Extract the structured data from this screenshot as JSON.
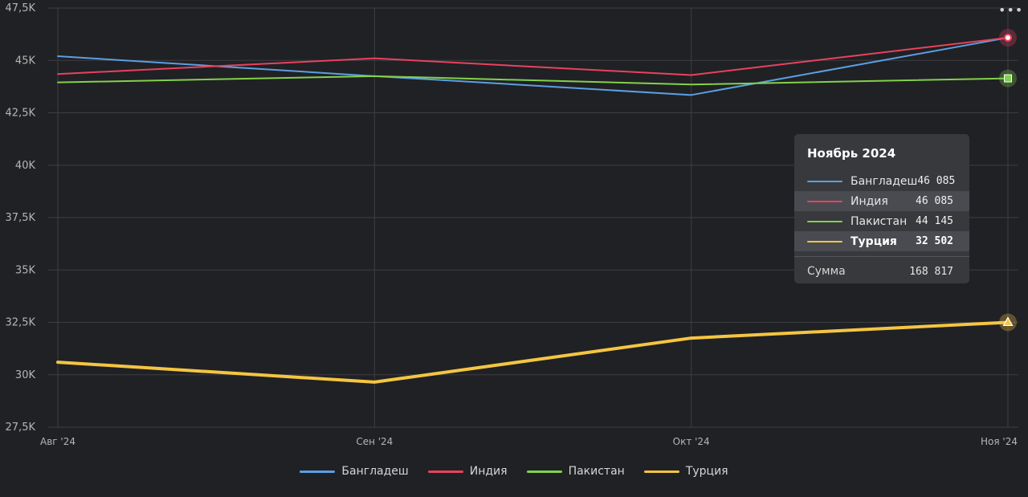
{
  "chart_data": {
    "type": "line",
    "categories": [
      "Авг '24",
      "Сен '24",
      "Окт '24",
      "Ноя '24"
    ],
    "y_ticks": [
      "27,5K",
      "30K",
      "32,5K",
      "35K",
      "37,5K",
      "40K",
      "42,5K",
      "45K",
      "47,5K"
    ],
    "ylim": [
      27500,
      47500
    ],
    "grid": true,
    "legend_position": "bottom",
    "series": [
      {
        "name": "Бангладеш",
        "color": "#5b9fe3",
        "values": [
          45200,
          44250,
          43350,
          46085
        ],
        "marker": "none",
        "width": 2
      },
      {
        "name": "Индия",
        "color": "#e8425f",
        "values": [
          44350,
          45100,
          44300,
          46085
        ],
        "marker": "circle",
        "width": 2
      },
      {
        "name": "Пакистан",
        "color": "#82d14b",
        "values": [
          43950,
          44250,
          43850,
          44145
        ],
        "marker": "square",
        "width": 2
      },
      {
        "name": "Турция",
        "color": "#f5c542",
        "values": [
          30600,
          29650,
          31750,
          32502
        ],
        "marker": "triangle",
        "width": 4
      }
    ]
  },
  "tooltip": {
    "title": "Ноябрь 2024",
    "rows": [
      {
        "name": "Бангладеш",
        "value": "46 085"
      },
      {
        "name": "Индия",
        "value": "46 085"
      },
      {
        "name": "Пакистан",
        "value": "44 145"
      },
      {
        "name": "Турция",
        "value": "32 502"
      }
    ],
    "sum_label": "Сумма",
    "sum_value": "168 817"
  },
  "menu": {
    "label": "•••"
  }
}
